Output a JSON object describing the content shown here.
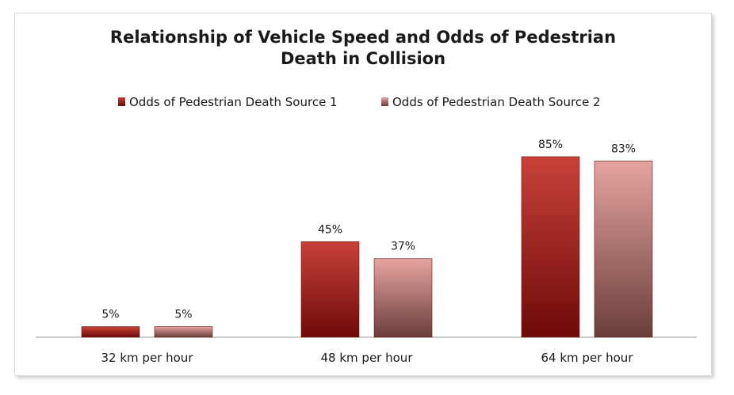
{
  "chart_data": {
    "type": "bar",
    "title": [
      "Relationship of Vehicle Speed and Odds of Pedestrian",
      "Death in Collision"
    ],
    "categories": [
      "32 km per hour",
      "48 km per hour",
      "64 km per hour"
    ],
    "series": [
      {
        "name": "Odds of Pedestrian Death Source 1",
        "values": [
          5,
          45,
          85
        ],
        "labels": [
          "5%",
          "45%",
          "85%"
        ],
        "color_top": "#c8413a",
        "color_bottom": "#6e0a08"
      },
      {
        "name": "Odds of Pedestrian Death Source 2",
        "values": [
          5,
          37,
          83
        ],
        "labels": [
          "5%",
          "37%",
          "83%"
        ],
        "color_top": "#e6a49f",
        "color_bottom": "#6a3e3b"
      }
    ],
    "ylim": [
      0,
      100
    ],
    "grid": false,
    "legend_position": "top",
    "xlabel": "",
    "ylabel": ""
  }
}
